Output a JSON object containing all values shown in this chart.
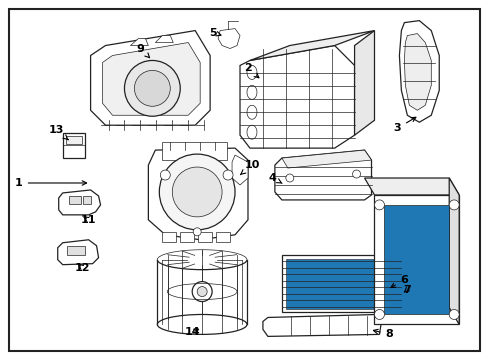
{
  "bg_color": "#ffffff",
  "border_color": "#000000",
  "line_color": "#222222",
  "text_color": "#000000",
  "fig_width": 4.89,
  "fig_height": 3.6,
  "dpi": 100
}
